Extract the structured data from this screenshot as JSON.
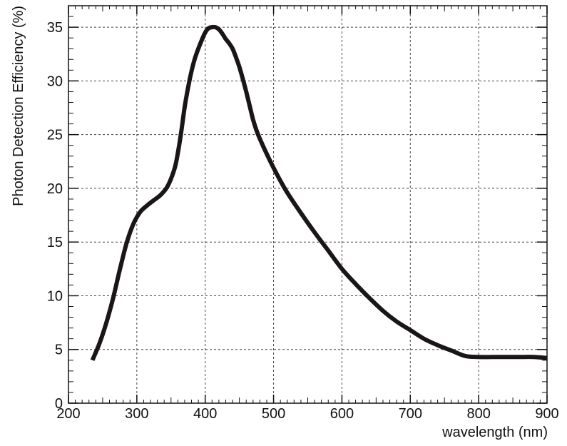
{
  "chart_data": {
    "type": "line",
    "xlabel": "wavelength (nm)",
    "ylabel": "Photon Detection Efficiency (%)",
    "xlim": [
      200,
      900
    ],
    "ylim": [
      0,
      37
    ],
    "xticks": [
      200,
      300,
      400,
      500,
      600,
      700,
      800,
      900
    ],
    "yticks": [
      0,
      5,
      10,
      15,
      20,
      25,
      30,
      35
    ],
    "grid": true,
    "series": [
      {
        "color": "#1a1616",
        "x": [
          235,
          245,
          255,
          265,
          275,
          285,
          295,
          305,
          315,
          325,
          335,
          345,
          355,
          360,
          365,
          370,
          375,
          380,
          385,
          390,
          395,
          400,
          405,
          410,
          415,
          420,
          425,
          430,
          435,
          440,
          445,
          450,
          455,
          460,
          465,
          470,
          475,
          480,
          490,
          500,
          510,
          520,
          540,
          560,
          580,
          600,
          620,
          640,
          660,
          680,
          700,
          720,
          740,
          760,
          780,
          800,
          820,
          840,
          860,
          880,
          900
        ],
        "y": [
          4.0,
          5.5,
          7.4,
          9.7,
          12.4,
          14.9,
          16.7,
          17.8,
          18.4,
          18.9,
          19.4,
          20.2,
          21.8,
          23.3,
          25.3,
          27.6,
          29.4,
          30.9,
          32.1,
          33.0,
          33.8,
          34.5,
          34.9,
          35.0,
          35.0,
          34.8,
          34.4,
          33.9,
          33.5,
          33.0,
          32.2,
          31.3,
          30.2,
          29.0,
          27.7,
          26.4,
          25.4,
          24.6,
          23.2,
          21.9,
          20.7,
          19.6,
          17.7,
          15.9,
          14.2,
          12.5,
          11.1,
          9.8,
          8.6,
          7.6,
          6.8,
          6.0,
          5.4,
          4.9,
          4.4,
          4.3,
          4.3,
          4.3,
          4.3,
          4.3,
          4.2
        ]
      }
    ]
  }
}
